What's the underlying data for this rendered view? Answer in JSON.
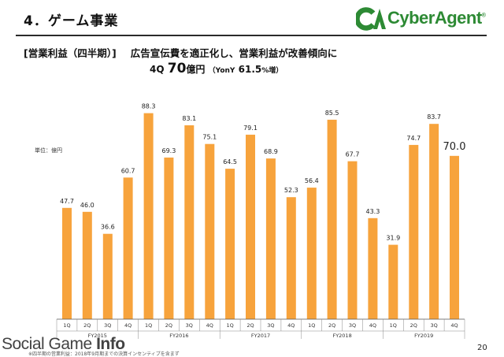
{
  "section_title": "4．ゲーム事業",
  "logo": {
    "text": "CyberAgent",
    "trademark": "®",
    "mark_text": "CA",
    "brand_color": "#2d8a34",
    "accent_color": "#7cc242"
  },
  "heading": {
    "bracket_label": "[営業利益（四半期）]",
    "message": "広告宣伝費を適正化し、営業利益が改善傾向に"
  },
  "subheading": {
    "quarter": "4Q",
    "value": "70",
    "unit": "億円",
    "yoy_open": "（YonY",
    "yoy_value": "61.5",
    "yoy_close": "%増）"
  },
  "unit_label": "単位：億円",
  "chart_data": {
    "type": "bar",
    "title": "",
    "xlabel": "",
    "ylabel": "",
    "ylim": [
      0,
      100
    ],
    "grid": false,
    "legend": "none",
    "bar_color": "#f7a33c",
    "categories": [
      "1Q",
      "2Q",
      "3Q",
      "4Q",
      "1Q",
      "2Q",
      "3Q",
      "4Q",
      "1Q",
      "2Q",
      "3Q",
      "4Q",
      "1Q",
      "2Q",
      "3Q",
      "4Q",
      "1Q",
      "2Q",
      "3Q",
      "4Q"
    ],
    "groups": [
      "FY2015",
      "FY2016",
      "FY2017",
      "FY2018",
      "FY2019"
    ],
    "values": [
      47.7,
      46.0,
      36.6,
      60.7,
      88.3,
      69.3,
      83.1,
      75.1,
      64.5,
      79.1,
      68.9,
      52.3,
      56.4,
      85.5,
      67.7,
      43.3,
      31.9,
      74.7,
      83.7,
      70.0
    ],
    "labels": [
      "47.7",
      "46.0",
      "36.6",
      "60.7",
      "88.3",
      "69.3",
      "83.1",
      "75.1",
      "64.5",
      "79.1",
      "68.9",
      "52.3",
      "56.4",
      "85.5",
      "67.7",
      "43.3",
      "31.9",
      "74.7",
      "83.7",
      "70.0"
    ],
    "highlight_index": 19
  },
  "watermark": {
    "text": "Social Game ",
    "strong": "Info"
  },
  "footnote": "※四半期の営業利益：2018年9月期までの決算インセンティブを含まず",
  "page_number": "20"
}
